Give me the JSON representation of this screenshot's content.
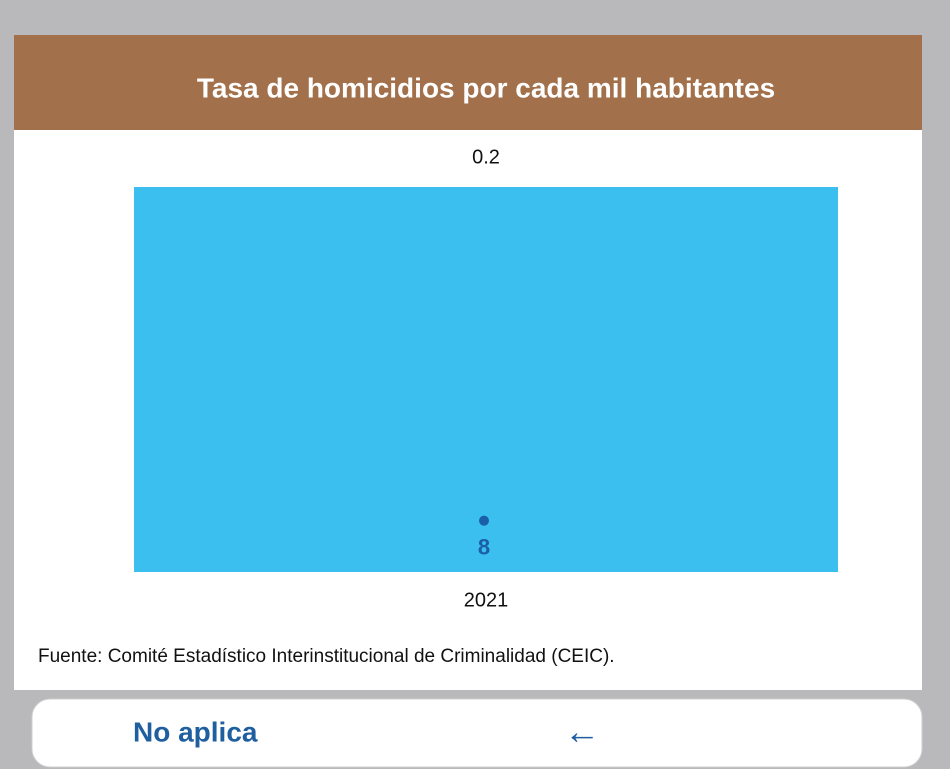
{
  "header": {
    "title": "Tasa de homicidios por cada mil habitantes"
  },
  "chart_data": {
    "type": "bar",
    "categories": [
      "2021"
    ],
    "series": [
      {
        "color": "#3bbfef",
        "values": [
          0.2
        ]
      },
      {
        "color": "#1a5fa8",
        "values": [
          8
        ],
        "axis": "y2"
      }
    ],
    "ylim": [
      0,
      0.2
    ],
    "y2lim": [
      0,
      60
    ]
  },
  "source": "Fuente: Comité Estadístico Interinstitucional de Criminalidad (CEIC).",
  "button": {
    "label": "No aplica",
    "icon": "←"
  }
}
